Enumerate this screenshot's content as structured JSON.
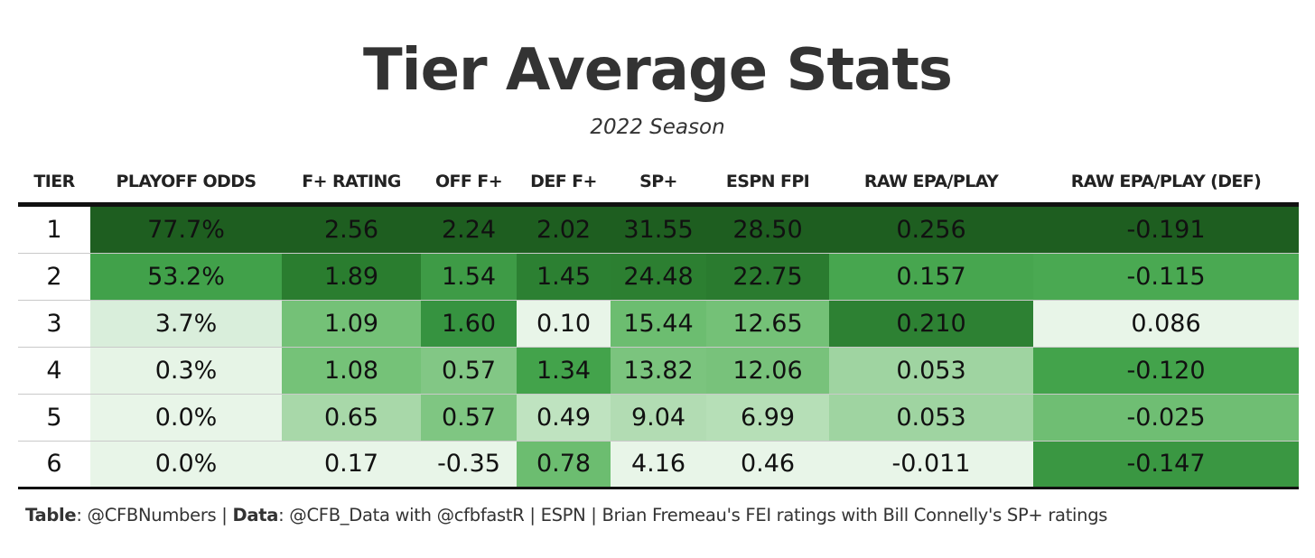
{
  "chart_data": {
    "type": "table",
    "title": "Tier Average Stats",
    "subtitle": "2022 Season",
    "columns": [
      "TIER",
      "PLAYOFF ODDS",
      "F+ RATING",
      "OFF F+",
      "DEF F+",
      "SP+",
      "ESPN FPI",
      "RAW EPA/PLAY",
      "RAW EPA/PLAY (DEF)"
    ],
    "rows": [
      {
        "tier": "1",
        "cells": [
          {
            "value": "77.7%",
            "color": "#1e5e20",
            "light": true
          },
          {
            "value": "2.56",
            "color": "#1e5e20",
            "light": true
          },
          {
            "value": "2.24",
            "color": "#1e5e20",
            "light": true
          },
          {
            "value": "2.02",
            "color": "#1e5e20",
            "light": true
          },
          {
            "value": "31.55",
            "color": "#1e5e20",
            "light": true
          },
          {
            "value": "28.50",
            "color": "#1e5e20",
            "light": true
          },
          {
            "value": "0.256",
            "color": "#1e5e20",
            "light": true
          },
          {
            "value": "-0.191",
            "color": "#1e5e20",
            "light": true
          }
        ]
      },
      {
        "tier": "2",
        "cells": [
          {
            "value": "53.2%",
            "color": "#41a14a",
            "light": true
          },
          {
            "value": "1.89",
            "color": "#2a7d2f",
            "light": true
          },
          {
            "value": "1.54",
            "color": "#3e9b46",
            "light": true
          },
          {
            "value": "1.45",
            "color": "#2c8032",
            "light": true
          },
          {
            "value": "24.48",
            "color": "#2c7f31",
            "light": true
          },
          {
            "value": "22.75",
            "color": "#2a7b2f",
            "light": false
          },
          {
            "value": "0.157",
            "color": "#47a64f",
            "light": false
          },
          {
            "value": "-0.115",
            "color": "#4aa952",
            "light": true
          }
        ]
      },
      {
        "tier": "3",
        "cells": [
          {
            "value": "3.7%",
            "color": "#d9eedb",
            "light": false
          },
          {
            "value": "1.09",
            "color": "#74c177",
            "light": false
          },
          {
            "value": "1.60",
            "color": "#369340",
            "light": true
          },
          {
            "value": "0.10",
            "color": "#e8f5e8",
            "light": false
          },
          {
            "value": "15.44",
            "color": "#6cbd70",
            "light": false
          },
          {
            "value": "12.65",
            "color": "#74c177",
            "light": false
          },
          {
            "value": "0.210",
            "color": "#2d8133",
            "light": true
          },
          {
            "value": "0.086",
            "color": "#e8f5e8",
            "light": false
          }
        ]
      },
      {
        "tier": "4",
        "cells": [
          {
            "value": "0.3%",
            "color": "#e6f4e6",
            "light": false
          },
          {
            "value": "1.08",
            "color": "#75c278",
            "light": false
          },
          {
            "value": "0.57",
            "color": "#82c785",
            "light": false
          },
          {
            "value": "1.34",
            "color": "#43a34b",
            "light": true
          },
          {
            "value": "13.82",
            "color": "#7bc47e",
            "light": false
          },
          {
            "value": "12.06",
            "color": "#78c27b",
            "light": false
          },
          {
            "value": "0.053",
            "color": "#9fd4a1",
            "light": false
          },
          {
            "value": "-0.120",
            "color": "#43a34b",
            "light": true
          }
        ]
      },
      {
        "tier": "5",
        "cells": [
          {
            "value": "0.0%",
            "color": "#e8f5e8",
            "light": false
          },
          {
            "value": "0.65",
            "color": "#a8d8a9",
            "light": false
          },
          {
            "value": "0.57",
            "color": "#7fc682",
            "light": false
          },
          {
            "value": "0.49",
            "color": "#bfe3c0",
            "light": false
          },
          {
            "value": "9.04",
            "color": "#b2dcb3",
            "light": false
          },
          {
            "value": "6.99",
            "color": "#b6dfb7",
            "light": false
          },
          {
            "value": "0.053",
            "color": "#9fd4a1",
            "light": false
          },
          {
            "value": "-0.025",
            "color": "#6fbe73",
            "light": false
          }
        ]
      },
      {
        "tier": "6",
        "cells": [
          {
            "value": "0.0%",
            "color": "#e8f5e8",
            "light": false
          },
          {
            "value": "0.17",
            "color": "#e8f5e8",
            "light": false
          },
          {
            "value": "-0.35",
            "color": "#e8f5e8",
            "light": false
          },
          {
            "value": "0.78",
            "color": "#6cbd70",
            "light": false
          },
          {
            "value": "4.16",
            "color": "#e8f5e8",
            "light": false
          },
          {
            "value": "0.46",
            "color": "#e8f5e8",
            "light": false
          },
          {
            "value": "-0.011",
            "color": "#e8f5e8",
            "light": false
          },
          {
            "value": "-0.147",
            "color": "#3a9742",
            "light": true
          }
        ]
      }
    ]
  },
  "footer": {
    "table_label": "Table",
    "table_value": ": @CFBNumbers | ",
    "data_label": "Data",
    "data_value": ": @CFB_Data with @cfbfastR | ESPN | Brian Fremeau's FEI ratings with Bill Connelly's SP+ ratings"
  }
}
